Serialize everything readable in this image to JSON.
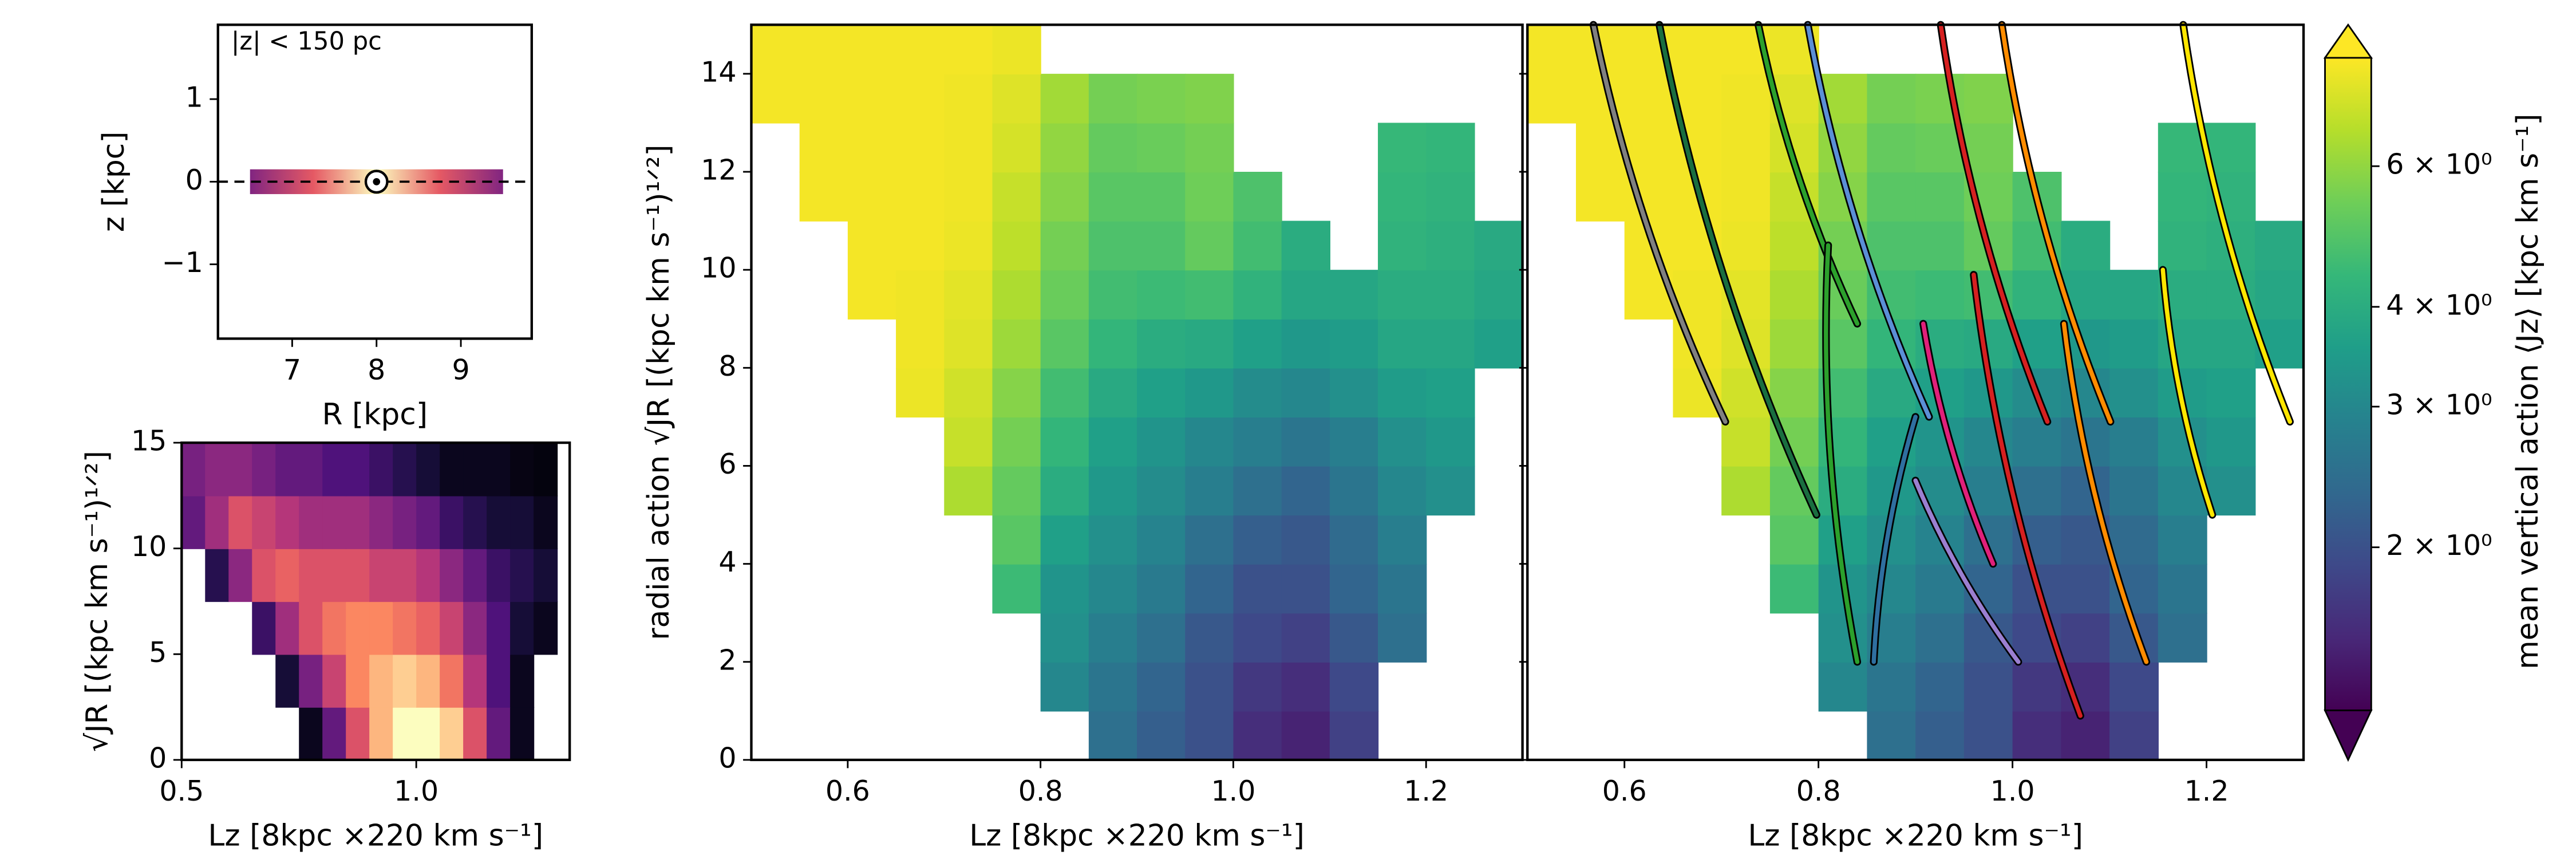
{
  "chart_data": [
    {
      "type": "band",
      "xlabel": "R [kpc]",
      "ylabel": "z [kpc]",
      "annotation": "|z| < 150 pc",
      "xlim": [
        6.12,
        9.84
      ],
      "ylim": [
        -1.9,
        1.9
      ],
      "xticks": [
        7,
        8,
        9
      ],
      "yticks": [
        1,
        0,
        {
          "value": -1,
          "label": "−1"
        }
      ],
      "band": {
        "R": [
          6.5,
          9.5
        ],
        "z": [
          -0.15,
          0.15
        ]
      },
      "sun": {
        "R": 8,
        "z": 0
      },
      "hline": 0
    },
    {
      "type": "density",
      "xlabel": "Lz [8kpc  ×220 km s⁻¹]",
      "ylabel": "√JR [(kpc km s⁻¹)¹ᐟ²]",
      "xlim": [
        0.5,
        1.327
      ],
      "ylim": [
        0,
        15
      ],
      "xticks": [
        0.5,
        {
          "value": 1,
          "label": "1.0"
        }
      ],
      "yticks": [
        0,
        5,
        10,
        15
      ],
      "xbins": [
        0.5,
        0.55,
        0.6,
        0.65,
        0.7,
        0.75,
        0.8,
        0.85,
        0.9,
        0.95,
        1,
        1.05,
        1.1,
        1.15,
        1.2,
        1.25,
        1.3
      ],
      "ybins": [
        0,
        2.5,
        5,
        7.5,
        10,
        12.5,
        15
      ],
      "grid": [
        [
          null,
          null,
          null,
          null,
          null,
          0.05,
          0.3,
          0.6,
          0.85,
          1.0,
          1.0,
          0.9,
          0.6,
          0.3,
          0.05,
          null
        ],
        [
          null,
          null,
          null,
          null,
          0.1,
          0.35,
          0.55,
          0.75,
          0.85,
          0.9,
          0.85,
          0.7,
          0.5,
          0.25,
          0.05,
          null
        ],
        [
          null,
          null,
          null,
          0.2,
          0.45,
          0.6,
          0.7,
          0.75,
          0.75,
          0.7,
          0.65,
          0.55,
          0.4,
          0.25,
          0.1,
          0.05
        ],
        [
          null,
          0.15,
          0.4,
          0.6,
          0.65,
          0.6,
          0.6,
          0.6,
          0.55,
          0.55,
          0.5,
          0.4,
          0.3,
          0.2,
          0.15,
          0.1
        ],
        [
          0.3,
          0.45,
          0.6,
          0.55,
          0.5,
          0.45,
          0.45,
          0.45,
          0.4,
          0.35,
          0.3,
          0.2,
          0.15,
          0.1,
          0.1,
          0.05
        ],
        [
          0.35,
          0.4,
          0.4,
          0.35,
          0.3,
          0.3,
          0.25,
          0.25,
          0.2,
          0.15,
          0.1,
          0.05,
          0.05,
          0.05,
          0.03,
          0.02
        ]
      ]
    },
    {
      "type": "heatmap",
      "xlabel": "Lz [8kpc  ×220 km s⁻¹]",
      "ylabel": "radial action √JR [(kpc km s⁻¹)¹ᐟ²]",
      "xlim": [
        0.5,
        1.3
      ],
      "ylim": [
        0,
        15
      ],
      "xticks": [
        0.6,
        0.8,
        {
          "value": 1,
          "label": "1.0"
        },
        1.2
      ],
      "yticks": [
        0,
        2,
        4,
        6,
        8,
        10,
        12,
        14
      ],
      "xbins": [
        0.5,
        0.55,
        0.6,
        0.65,
        0.7,
        0.75,
        0.8,
        0.85,
        0.9,
        0.95,
        1,
        1.05,
        1.1,
        1.15,
        1.2,
        1.25,
        1.3
      ],
      "ybins": [
        0,
        1,
        2,
        3,
        4,
        5,
        6,
        7,
        8,
        9,
        10,
        11,
        12,
        13,
        14,
        15
      ],
      "grid": [
        [
          null,
          null,
          null,
          null,
          null,
          null,
          null,
          2.5,
          2.2,
          2.0,
          1.6,
          1.5,
          1.8,
          null,
          null,
          null
        ],
        [
          null,
          null,
          null,
          null,
          null,
          null,
          3.0,
          2.6,
          2.3,
          2.0,
          1.7,
          1.6,
          1.9,
          null,
          null,
          null
        ],
        [
          null,
          null,
          null,
          null,
          null,
          null,
          3.2,
          2.8,
          2.5,
          2.1,
          1.9,
          1.8,
          2.1,
          2.5,
          null,
          null
        ],
        [
          null,
          null,
          null,
          null,
          null,
          4.5,
          3.3,
          3.0,
          2.7,
          2.3,
          2.0,
          2.0,
          2.3,
          2.6,
          null,
          null
        ],
        [
          null,
          null,
          null,
          null,
          null,
          5.0,
          3.6,
          3.2,
          2.9,
          2.5,
          2.2,
          2.1,
          2.4,
          2.8,
          null,
          null
        ],
        [
          null,
          null,
          null,
          null,
          6.5,
          5.2,
          4.0,
          3.4,
          3.1,
          2.8,
          2.5,
          2.3,
          2.6,
          3.0,
          3.2,
          null
        ],
        [
          null,
          null,
          null,
          null,
          7.0,
          5.5,
          4.3,
          3.6,
          3.3,
          3.0,
          2.8,
          2.6,
          2.8,
          3.2,
          3.4,
          null
        ],
        [
          null,
          null,
          null,
          7.8,
          7.2,
          5.8,
          4.6,
          3.9,
          3.6,
          3.4,
          3.1,
          3.0,
          3.2,
          3.5,
          3.6,
          null
        ],
        [
          null,
          null,
          null,
          7.9,
          7.5,
          6.2,
          5.0,
          4.3,
          4.0,
          3.9,
          3.6,
          3.4,
          3.5,
          3.8,
          3.8,
          3.6
        ],
        [
          null,
          null,
          8.0,
          7.9,
          7.6,
          6.5,
          5.3,
          4.6,
          4.5,
          4.6,
          4.2,
          3.8,
          3.8,
          4.0,
          4.0,
          3.8
        ],
        [
          null,
          null,
          8.0,
          8.0,
          7.8,
          6.8,
          5.5,
          4.8,
          4.8,
          5.2,
          4.6,
          4.0,
          null,
          4.2,
          4.1,
          3.9
        ],
        [
          null,
          8.0,
          8.0,
          8.0,
          7.9,
          7.0,
          5.8,
          5.0,
          5.0,
          5.4,
          4.8,
          null,
          null,
          4.3,
          4.2,
          null
        ],
        [
          null,
          8.0,
          8.0,
          8.0,
          7.9,
          7.3,
          6.0,
          5.2,
          5.3,
          5.5,
          null,
          null,
          null,
          4.4,
          4.3,
          null
        ],
        [
          8.0,
          8.0,
          8.0,
          8.0,
          7.9,
          7.5,
          6.3,
          5.5,
          5.6,
          5.7,
          null,
          null,
          null,
          null,
          null,
          null
        ],
        [
          8.0,
          8.0,
          8.0,
          8.0,
          8.0,
          7.8,
          null,
          null,
          null,
          null,
          null,
          null,
          null,
          null,
          null,
          null
        ]
      ],
      "colorbar": {
        "label": "mean vertical action ⟨Jz⟩ [kpc km s⁻¹]",
        "log": true,
        "lim": [
          1.25,
          8.2
        ],
        "ticks": [
          {
            "value": 2,
            "label": "2 × 10⁰"
          },
          {
            "value": 3,
            "label": "3 × 10⁰"
          },
          {
            "value": 4,
            "label": "4 × 10⁰"
          },
          {
            "value": 6,
            "label": "6 × 10⁰"
          }
        ]
      }
    },
    {
      "type": "tracks",
      "xlabel": "Lz [8kpc  ×220 km s⁻¹]",
      "xlim": [
        0.5,
        1.3
      ],
      "ylim": [
        0,
        15
      ],
      "xticks": [
        0.6,
        0.8,
        {
          "value": 1,
          "label": "1.0"
        },
        1.2
      ],
      "yticks": [
        0,
        2,
        4,
        6,
        8,
        10,
        12,
        14
      ],
      "series": [
        {
          "color": "#808080",
          "x": [
            0.568,
            0.704
          ],
          "y": [
            15,
            6.9
          ]
        },
        {
          "color": "#1a6e40",
          "x": [
            0.636,
            0.798
          ],
          "y": [
            15,
            5.0
          ]
        },
        {
          "color": "#2ca02c",
          "x": [
            0.738,
            0.84
          ],
          "y": [
            15,
            8.9
          ]
        },
        {
          "color": "#5b8fd6",
          "x": [
            0.789,
            0.914
          ],
          "y": [
            15,
            7.0
          ]
        },
        {
          "color": "#d62020",
          "x": [
            0.926,
            1.036
          ],
          "y": [
            15,
            6.9
          ]
        },
        {
          "color": "#ff8c00",
          "x": [
            0.989,
            1.101
          ],
          "y": [
            15,
            6.9
          ]
        },
        {
          "color": "#ffe600",
          "x": [
            1.176,
            1.286
          ],
          "y": [
            15,
            6.9
          ]
        },
        {
          "color": "#2ca02c",
          "x": [
            0.81,
            0.84
          ],
          "y": [
            10.5,
            2.0
          ]
        },
        {
          "color": "#2f6fa0",
          "x": [
            0.9,
            0.857
          ],
          "y": [
            7.0,
            2.0
          ]
        },
        {
          "color": "#e0207a",
          "x": [
            0.908,
            0.98
          ],
          "y": [
            8.9,
            4.0
          ]
        },
        {
          "color": "#d62020",
          "x": [
            0.96,
            1.07
          ],
          "y": [
            9.9,
            0.9
          ]
        },
        {
          "color": "#9b7fd0",
          "x": [
            0.9,
            1.006
          ],
          "y": [
            5.7,
            2.0
          ]
        },
        {
          "color": "#ff8c00",
          "x": [
            1.053,
            1.138
          ],
          "y": [
            8.9,
            2.0
          ]
        },
        {
          "color": "#ffe600",
          "x": [
            1.155,
            1.206
          ],
          "y": [
            10.0,
            5.0
          ]
        }
      ]
    }
  ]
}
